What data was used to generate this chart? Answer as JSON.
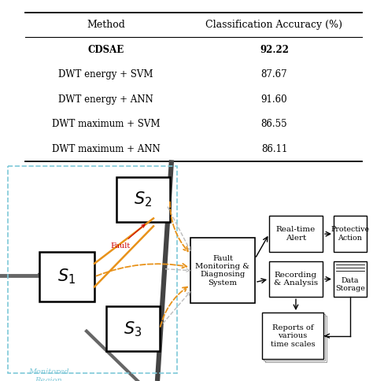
{
  "table": {
    "headers": [
      "Method",
      "Classification Accuracy (%)"
    ],
    "rows": [
      [
        "CDSAE",
        "92.22"
      ],
      [
        "DWT energy + SVM",
        "87.67"
      ],
      [
        "DWT energy + ANN",
        "91.60"
      ],
      [
        "DWT maximum + SVM",
        "86.55"
      ],
      [
        "DWT maximum + ANN",
        "86.11"
      ]
    ],
    "bold_row": 0
  },
  "colors": {
    "orange": "#E8921A",
    "red": "#CC0000",
    "light_blue": "#7EC8D8",
    "gray": "#999999",
    "dark_gray": "#555555",
    "black": "#000000",
    "white": "#ffffff"
  }
}
